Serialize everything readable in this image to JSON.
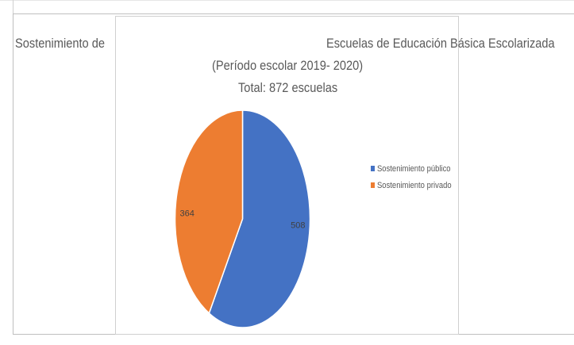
{
  "chart_data": {
    "type": "pie",
    "title": {
      "left": "Sostenimiento de",
      "right": "Escuelas de Educación Básica Escolarizada",
      "line2": "(Período escolar 2019- 2020)",
      "line3": "Total: 872 escuelas"
    },
    "categories": [
      "Sostenimiento público",
      "Sostenimiento privado"
    ],
    "values": [
      508,
      364
    ],
    "data_labels": [
      "508",
      "364"
    ],
    "colors": [
      "#4472C4",
      "#ED7D31"
    ],
    "start_angle_deg": 0,
    "direction": "clockwise",
    "legend_position": "right"
  }
}
